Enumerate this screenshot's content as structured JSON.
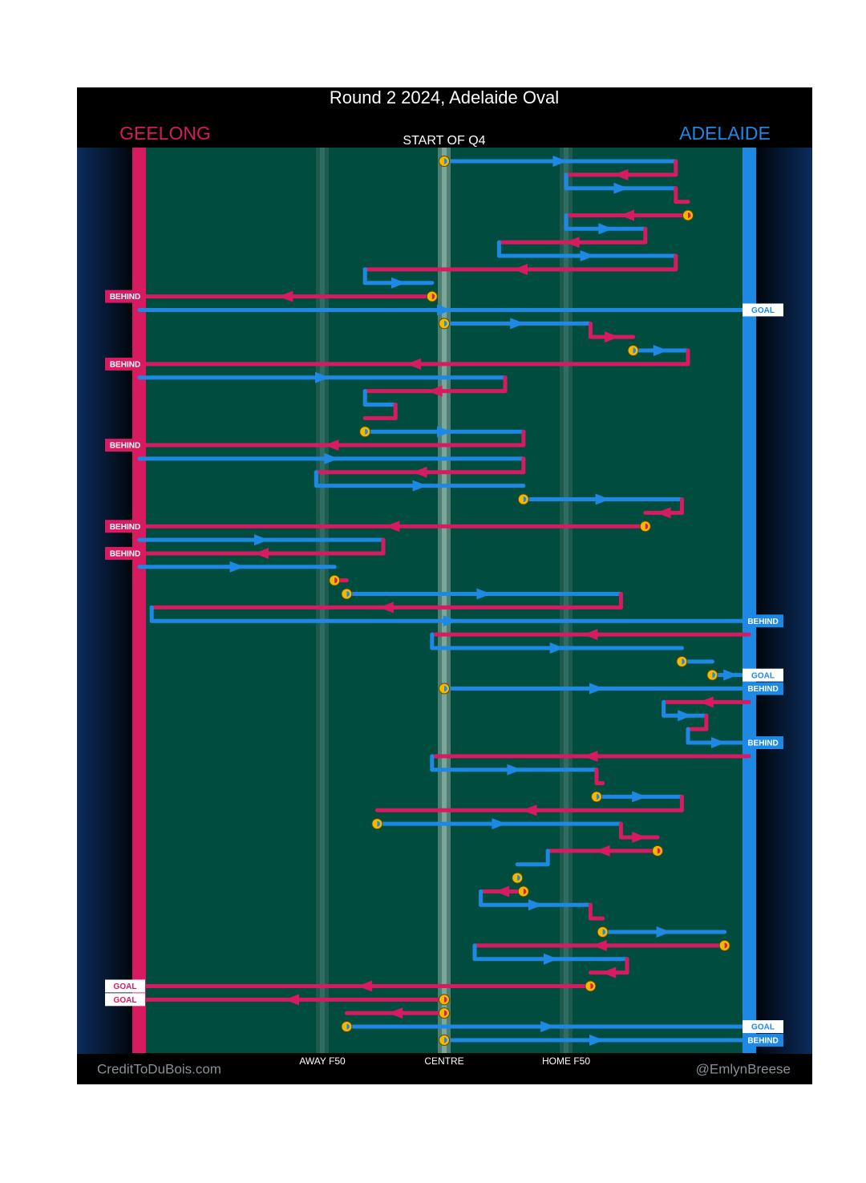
{
  "title": "Round 2 2024, Adelaide Oval",
  "subtitle": "START OF Q4",
  "teams": {
    "geelong": {
      "name": "GEELONG",
      "color": "#d81b60"
    },
    "adelaide": {
      "name": "ADELAIDE",
      "color": "#1e88e5"
    }
  },
  "scoring": {
    "goal": "GOAL",
    "behind": "BEHIND"
  },
  "field_markers": [
    {
      "label": "AWAY F50",
      "position": 30
    },
    {
      "label": "CENTRE",
      "position": 50
    },
    {
      "label": "HOME F50",
      "position": 70
    }
  ],
  "credit_left": "CreditToDuBois.com",
  "credit_right": "@EmlynBreese",
  "chains": [
    {
      "stoppage": true,
      "segments": [
        {
          "team": "adelaide",
          "from": 50,
          "to": 88
        },
        {
          "team": "geelong",
          "from": 88,
          "to": 70
        },
        {
          "team": "adelaide",
          "from": 70,
          "to": 88
        },
        {
          "team": "geelong",
          "from": 88,
          "to": 90
        }
      ]
    },
    {
      "stoppage": true,
      "segments": [
        {
          "team": "geelong",
          "from": 90,
          "to": 70
        },
        {
          "team": "adelaide",
          "from": 70,
          "to": 83
        },
        {
          "team": "geelong",
          "from": 83,
          "to": 59
        },
        {
          "team": "adelaide",
          "from": 59,
          "to": 88
        },
        {
          "team": "geelong",
          "from": 88,
          "to": 37
        },
        {
          "team": "adelaide",
          "from": 37,
          "to": 48
        }
      ]
    },
    {
      "stoppage": true,
      "result": "behind",
      "segments": [
        {
          "team": "geelong",
          "from": 48,
          "to": 0
        }
      ]
    },
    {
      "result": "goal",
      "segments": [
        {
          "team": "adelaide",
          "from": 0,
          "to": 100
        }
      ]
    },
    {
      "stoppage": true,
      "segments": [
        {
          "team": "adelaide",
          "from": 50,
          "to": 74
        },
        {
          "team": "geelong",
          "from": 74,
          "to": 81
        }
      ]
    },
    {
      "stoppage": true,
      "result": "behind",
      "segments": [
        {
          "team": "adelaide",
          "from": 81,
          "to": 90
        },
        {
          "team": "geelong",
          "from": 90,
          "to": 0
        }
      ]
    },
    {
      "segments": [
        {
          "team": "adelaide",
          "from": 0,
          "to": 60
        },
        {
          "team": "geelong",
          "from": 60,
          "to": 37
        },
        {
          "team": "adelaide",
          "from": 37,
          "to": 42
        },
        {
          "team": "geelong",
          "from": 42,
          "to": 37
        }
      ]
    },
    {
      "stoppage": true,
      "result": "behind",
      "segments": [
        {
          "team": "adelaide",
          "from": 37,
          "to": 63
        },
        {
          "team": "geelong",
          "from": 63,
          "to": 0
        }
      ]
    },
    {
      "segments": [
        {
          "team": "adelaide",
          "from": 0,
          "to": 63
        },
        {
          "team": "geelong",
          "from": 63,
          "to": 29
        },
        {
          "team": "adelaide",
          "from": 29,
          "to": 63
        }
      ]
    },
    {
      "stoppage": true,
      "segments": [
        {
          "team": "adelaide",
          "from": 63,
          "to": 89
        },
        {
          "team": "geelong",
          "from": 89,
          "to": 83
        }
      ]
    },
    {
      "stoppage": true,
      "result": "behind",
      "segments": [
        {
          "team": "geelong",
          "from": 83,
          "to": 0
        }
      ]
    },
    {
      "result": "behind",
      "segments": [
        {
          "team": "adelaide",
          "from": 0,
          "to": 40
        },
        {
          "team": "geelong",
          "from": 40,
          "to": 0
        }
      ]
    },
    {
      "segments": [
        {
          "team": "adelaide",
          "from": 0,
          "to": 32
        }
      ]
    },
    {
      "stoppage": true,
      "segments": [
        {
          "team": "geelong",
          "from": 32,
          "to": 34
        }
      ]
    },
    {
      "stoppage": true,
      "result": "behind",
      "segments": [
        {
          "team": "adelaide",
          "from": 34,
          "to": 79
        },
        {
          "team": "geelong",
          "from": 79,
          "to": 2
        },
        {
          "team": "adelaide",
          "from": 2,
          "to": 100
        }
      ]
    },
    {
      "segments": [
        {
          "team": "geelong",
          "from": 100,
          "to": 48
        },
        {
          "team": "adelaide",
          "from": 48,
          "to": 89
        }
      ]
    },
    {
      "stoppage": true,
      "segments": [
        {
          "team": "adelaide",
          "from": 89,
          "to": 94
        }
      ]
    },
    {
      "stoppage": true,
      "result": "goal",
      "segments": [
        {
          "team": "adelaide",
          "from": 94,
          "to": 100
        }
      ]
    },
    {
      "stoppage": true,
      "result": "behind",
      "segments": [
        {
          "team": "adelaide",
          "from": 50,
          "to": 100
        }
      ]
    },
    {
      "result": "behind",
      "segments": [
        {
          "team": "geelong",
          "from": 100,
          "to": 86
        },
        {
          "team": "adelaide",
          "from": 86,
          "to": 93
        },
        {
          "team": "geelong",
          "from": 93,
          "to": 90
        },
        {
          "team": "adelaide",
          "from": 90,
          "to": 100
        }
      ]
    },
    {
      "segments": [
        {
          "team": "geelong",
          "from": 100,
          "to": 48
        },
        {
          "team": "adelaide",
          "from": 48,
          "to": 75
        },
        {
          "team": "geelong",
          "from": 75,
          "to": 76
        }
      ]
    },
    {
      "stoppage": true,
      "segments": [
        {
          "team": "adelaide",
          "from": 75,
          "to": 89
        },
        {
          "team": "geelong",
          "from": 89,
          "to": 39
        }
      ]
    },
    {
      "stoppage": true,
      "segments": [
        {
          "team": "adelaide",
          "from": 39,
          "to": 79
        },
        {
          "team": "geelong",
          "from": 79,
          "to": 85
        }
      ]
    },
    {
      "stoppage": true,
      "segments": [
        {
          "team": "geelong",
          "from": 85,
          "to": 67
        },
        {
          "team": "adelaide",
          "from": 67,
          "to": 62
        }
      ]
    },
    {
      "stoppage": true,
      "segments": [
        {
          "team": "adelaide",
          "from": 62,
          "to": 62
        }
      ]
    },
    {
      "stoppage": true,
      "segments": [
        {
          "team": "geelong",
          "from": 63,
          "to": 56
        },
        {
          "team": "adelaide",
          "from": 56,
          "to": 74
        },
        {
          "team": "geelong",
          "from": 74,
          "to": 76
        }
      ]
    },
    {
      "stoppage": true,
      "segments": [
        {
          "team": "adelaide",
          "from": 76,
          "to": 96
        }
      ]
    },
    {
      "stoppage": true,
      "segments": [
        {
          "team": "geelong",
          "from": 96,
          "to": 55
        },
        {
          "team": "adelaide",
          "from": 55,
          "to": 80
        },
        {
          "team": "geelong",
          "from": 80,
          "to": 74
        }
      ]
    },
    {
      "stoppage": true,
      "result": "goal",
      "segments": [
        {
          "team": "geelong",
          "from": 74,
          "to": 0
        }
      ]
    },
    {
      "stoppage": true,
      "result": "goal",
      "segments": [
        {
          "team": "geelong",
          "from": 50,
          "to": 0
        }
      ]
    },
    {
      "stoppage": true,
      "segments": [
        {
          "team": "geelong",
          "from": 50,
          "to": 34
        }
      ]
    },
    {
      "stoppage": true,
      "result": "goal",
      "segments": [
        {
          "team": "adelaide",
          "from": 34,
          "to": 100
        }
      ]
    },
    {
      "stoppage": true,
      "result": "behind",
      "segments": [
        {
          "team": "adelaide",
          "from": 50,
          "to": 100
        }
      ]
    }
  ]
}
